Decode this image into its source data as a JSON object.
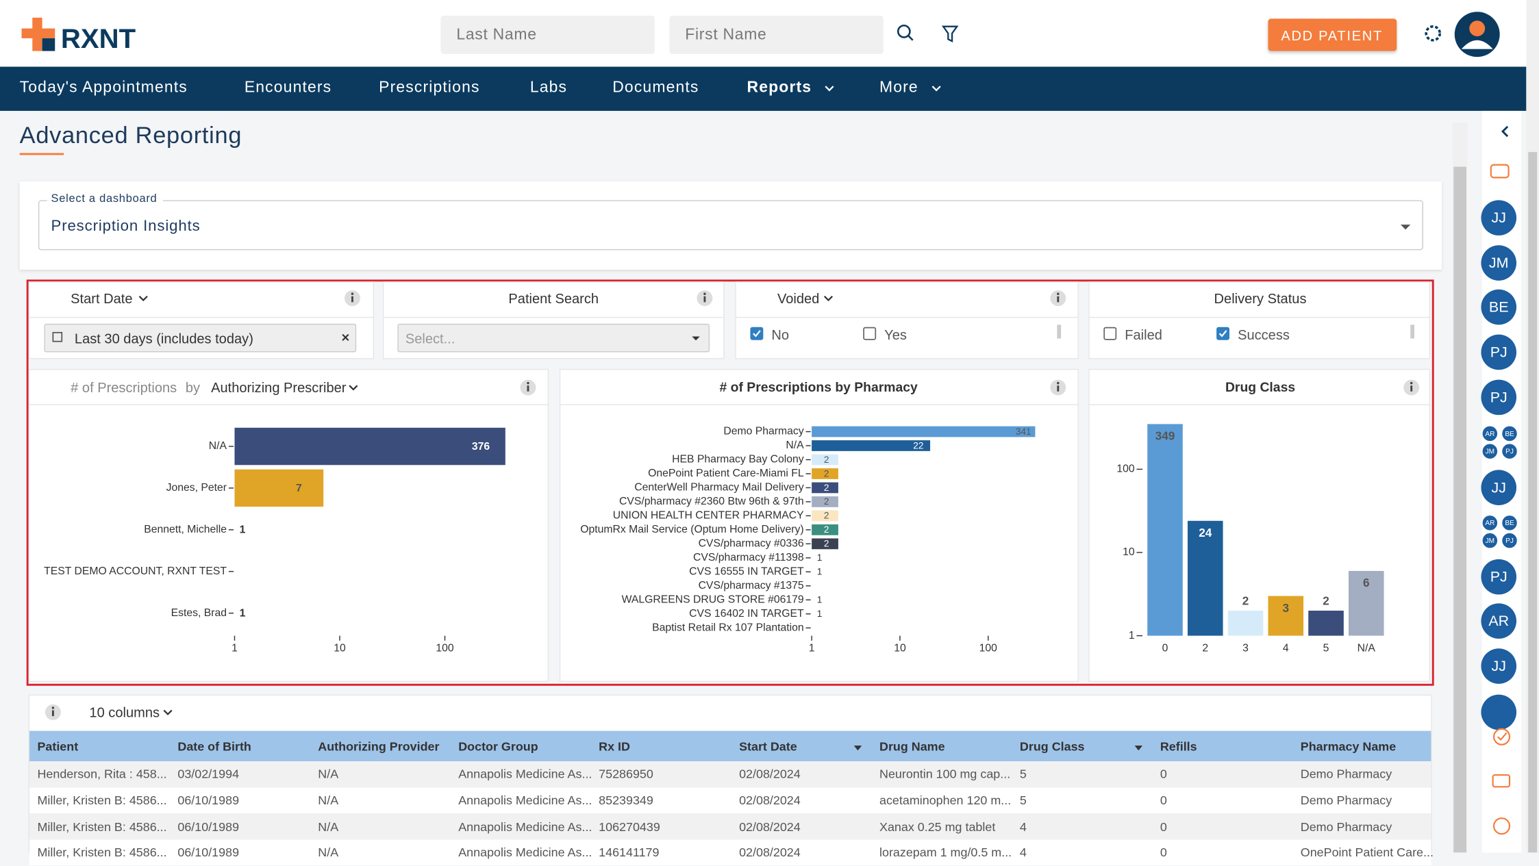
{
  "header": {
    "logo": "RXNT",
    "search": [
      "Last Name",
      "First Name"
    ],
    "add_button": "ADD PATIENT"
  },
  "nav": [
    "Today's Appointments",
    "Encounters",
    "Prescriptions",
    "Labs",
    "Documents",
    "Reports",
    "More"
  ],
  "page_title": "Advanced Reporting",
  "dashboard": {
    "label": "Select a dashboard",
    "value": "Prescription Insights"
  },
  "filters": {
    "start_date": {
      "title": "Start Date",
      "value": "Last 30 days (includes today)"
    },
    "patient_search": {
      "title": "Patient Search",
      "placeholder": "Select..."
    },
    "voided": {
      "title": "Voided",
      "options": [
        {
          "label": "No",
          "checked": true
        },
        {
          "label": "Yes",
          "checked": false
        }
      ]
    },
    "delivery_status": {
      "title": "Delivery Status",
      "options": [
        {
          "label": "Failed",
          "checked": false
        },
        {
          "label": "Success",
          "checked": true
        }
      ]
    }
  },
  "chart_data": [
    {
      "type": "hbar",
      "metric": "# of Prescriptions",
      "by": "by",
      "group": "Authorizing Prescriber",
      "categories": [
        "N/A",
        "Jones, Peter",
        "Bennett, Michelle",
        "TEST DEMO ACCOUNT, RXNT TEST",
        "Estes, Brad"
      ],
      "values": [
        376,
        7,
        1,
        null,
        1
      ],
      "colors": [
        "#3b4d7a",
        "#e0a526",
        null,
        null,
        null
      ],
      "xscale": "log",
      "xlim": [
        1,
        800
      ],
      "xticks": [
        1,
        10,
        100
      ]
    },
    {
      "type": "hbar",
      "title": "# of Prescriptions by Pharmacy",
      "categories": [
        "Demo Pharmacy",
        "N/A",
        "HEB Pharmacy Bay Colony",
        "OnePoint Patient Care-Miami FL",
        "CenterWell Pharmacy Mail Delivery",
        "CVS/pharmacy #2360 Btw 96th & 97th",
        "UNION HEALTH CENTER PHARMACY",
        "OptumRx Mail Service (Optum Home Delivery)",
        "CVS/pharmacy #0336",
        "CVS/pharmacy #11398",
        "CVS 16555 IN TARGET",
        "CVS/pharmacy #1375",
        "WALGREENS DRUG STORE #06179",
        "CVS 16402 IN TARGET",
        "Baptist Retail Rx 107 Plantation"
      ],
      "values": [
        341,
        22,
        2,
        2,
        2,
        2,
        2,
        2,
        2,
        1,
        1,
        null,
        1,
        1,
        null
      ],
      "colors": [
        "#5b9bd5",
        "#1f5f99",
        "#d6ebfa",
        "#e0a526",
        "#3b4d7a",
        "#a3aec2",
        "#fbe6c2",
        "#3a8f80",
        "#3a4150",
        null,
        null,
        null,
        null,
        null,
        null
      ],
      "xscale": "log",
      "xlim": [
        1,
        800
      ],
      "xticks": [
        1,
        10,
        100
      ]
    },
    {
      "type": "bar",
      "title": "Drug Class",
      "categories": [
        "0",
        "2",
        "3",
        "4",
        "5",
        "N/A"
      ],
      "values": [
        349,
        24,
        2,
        3,
        2,
        6
      ],
      "colors": [
        "#5b9bd5",
        "#1f5f99",
        "#d6ebfa",
        "#e0a526",
        "#3b4d7a",
        "#a3aec2"
      ],
      "yscale": "log",
      "ylim": [
        1,
        500
      ],
      "yticks": [
        1,
        10,
        100
      ]
    }
  ],
  "sidebar": {
    "avatars": [
      "JJ",
      "JM",
      "BE",
      "PJ",
      "PJ",
      [
        "AR",
        "BE",
        "JM",
        "PJ"
      ],
      "JJ",
      [
        "AR",
        "BE",
        "JM",
        "PJ"
      ],
      "PJ",
      "AR",
      "JJ"
    ]
  },
  "table": {
    "columns_button": "10 columns",
    "headers": [
      "Patient",
      "Date of Birth",
      "Authorizing Provider",
      "Doctor Group",
      "Rx ID",
      "Start Date",
      "Drug Name",
      "Drug Class",
      "Refills",
      "Pharmacy Name"
    ],
    "rows": [
      [
        "Henderson, Rita : 458...",
        "03/02/1994",
        "N/A",
        "Annapolis Medicine As...",
        "75286950",
        "02/08/2024",
        "Neurontin 100 mg cap...",
        "5",
        "0",
        "Demo Pharmacy"
      ],
      [
        "Miller, Kristen B: 4586...",
        "06/10/1989",
        "N/A",
        "Annapolis Medicine As...",
        "85239349",
        "02/08/2024",
        "acetaminophen 120 m...",
        "5",
        "0",
        "Demo Pharmacy"
      ],
      [
        "Miller, Kristen B: 4586...",
        "06/10/1989",
        "N/A",
        "Annapolis Medicine As...",
        "106270439",
        "02/08/2024",
        "Xanax 0.25 mg tablet",
        "4",
        "0",
        "Demo Pharmacy"
      ],
      [
        "Miller, Kristen B: 4586...",
        "06/10/1989",
        "N/A",
        "Annapolis Medicine As...",
        "146141179",
        "02/08/2024",
        "lorazepam 1 mg/0.5 m...",
        "4",
        "0",
        "OnePoint Patient Care..."
      ]
    ]
  }
}
